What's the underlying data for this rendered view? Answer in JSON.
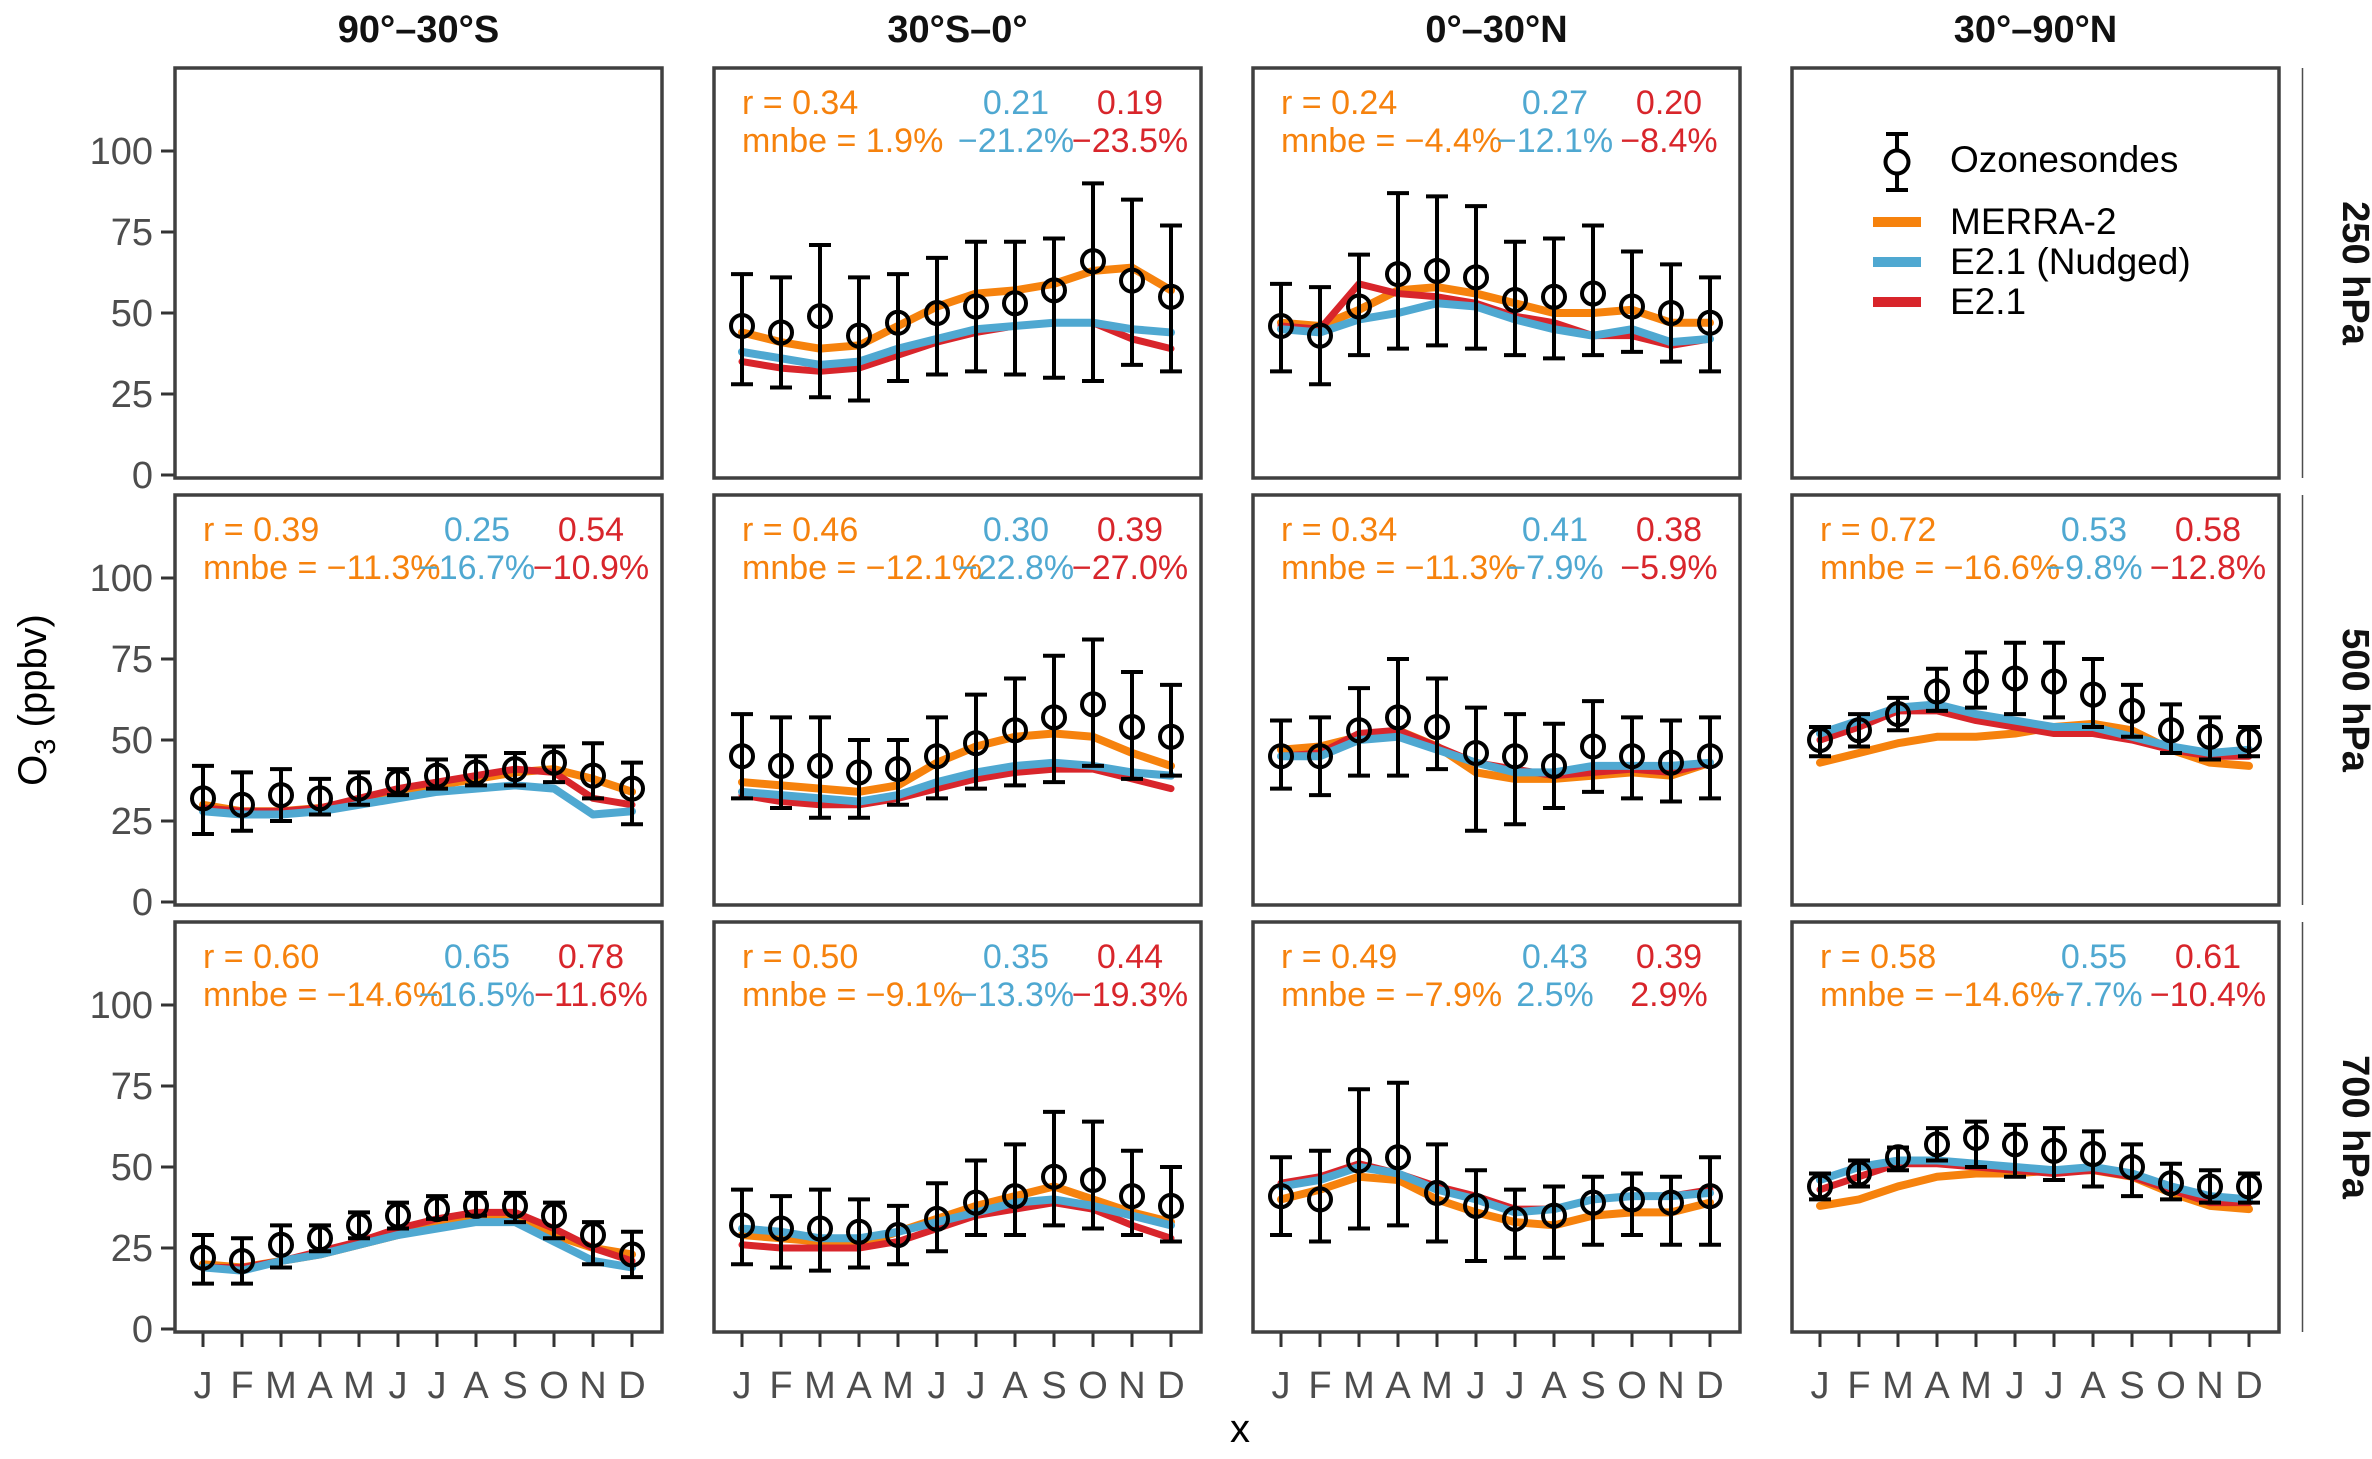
{
  "colors": {
    "merra2": "#F6820D",
    "nudged": "#4FA8D1",
    "e21": "#D8252B",
    "obs": "#000000",
    "axis_text": "#4D4D4D",
    "header_text": "#111111",
    "border": "#404040",
    "background": "#ffffff"
  },
  "legend": {
    "items": [
      {
        "label": "Ozonesondes",
        "type": "point",
        "color_key": "obs"
      },
      {
        "label": "MERRA-2",
        "type": "line",
        "color_key": "merra2"
      },
      {
        "label": "E2.1 (Nudged)",
        "type": "line",
        "color_key": "nudged"
      },
      {
        "label": "E2.1",
        "type": "line",
        "color_key": "e21"
      }
    ]
  },
  "chart_data": {
    "type": "line",
    "categories": [
      "J",
      "F",
      "M",
      "A",
      "M",
      "J",
      "J",
      "A",
      "S",
      "O",
      "N",
      "D"
    ],
    "ylim": [
      0,
      125
    ],
    "yticks": [
      0,
      25,
      50,
      75,
      100
    ],
    "ylabel_pre": "O",
    "ylabel_sub": "3",
    "ylabel_post": " (ppbv)",
    "xlabel": "x",
    "col_headers": [
      "90°–30°S",
      "30°S–0°",
      "0°–30°N",
      "30°–90°N"
    ],
    "row_headers": [
      "250 hPa",
      "500 hPa",
      "700 hPa"
    ],
    "stats_prefix_r": "r = ",
    "stats_prefix_mnbe": "mnbe = ",
    "series_names": [
      "Ozonesondes",
      "MERRA-2",
      "E2.1 (Nudged)",
      "E2.1"
    ],
    "legend_position": {
      "row": 0,
      "col": 3
    },
    "panels": [
      {
        "row": 0,
        "col": 0,
        "empty": true
      },
      {
        "row": 0,
        "col": 1,
        "stats": {
          "r": [
            "0.34",
            "0.21",
            "0.19"
          ],
          "mnbe": [
            "1.9%",
            "−21.2%",
            "−23.5%"
          ]
        },
        "obs": [
          46,
          44,
          49,
          43,
          47,
          50,
          52,
          53,
          57,
          66,
          60,
          55
        ],
        "err_lo": [
          28,
          27,
          24,
          23,
          29,
          31,
          32,
          31,
          30,
          29,
          34,
          32
        ],
        "err_hi": [
          62,
          61,
          71,
          61,
          62,
          67,
          72,
          72,
          73,
          90,
          85,
          77
        ],
        "merra2": [
          44,
          41,
          39,
          40,
          46,
          52,
          56,
          57,
          59,
          63,
          64,
          57
        ],
        "nudged": [
          38,
          36,
          34,
          35,
          39,
          42,
          45,
          46,
          47,
          47,
          45,
          44
        ],
        "e21": [
          35,
          33,
          32,
          33,
          37,
          41,
          44,
          46,
          47,
          47,
          42,
          39
        ]
      },
      {
        "row": 0,
        "col": 2,
        "stats": {
          "r": [
            "0.24",
            "0.27",
            "0.20"
          ],
          "mnbe": [
            "−4.4%",
            "−12.1%",
            "−8.4%"
          ]
        },
        "obs": [
          46,
          43,
          52,
          62,
          63,
          61,
          54,
          55,
          56,
          52,
          50,
          47
        ],
        "err_lo": [
          32,
          28,
          37,
          39,
          40,
          39,
          37,
          36,
          37,
          38,
          35,
          32
        ],
        "err_hi": [
          59,
          58,
          68,
          87,
          86,
          83,
          72,
          73,
          77,
          69,
          65,
          61
        ],
        "merra2": [
          47,
          46,
          51,
          57,
          58,
          56,
          53,
          50,
          50,
          51,
          47,
          47
        ],
        "nudged": [
          45,
          44,
          48,
          50,
          53,
          52,
          48,
          45,
          43,
          45,
          41,
          42
        ],
        "e21": [
          46,
          45,
          59,
          56,
          55,
          53,
          49,
          47,
          43,
          43,
          40,
          42
        ]
      },
      {
        "row": 0,
        "col": 3,
        "legend": true
      },
      {
        "row": 1,
        "col": 0,
        "stats": {
          "r": [
            "0.39",
            "0.25",
            "0.54"
          ],
          "mnbe": [
            "−11.3%",
            "−16.7%",
            "−10.9%"
          ]
        },
        "obs": [
          32,
          30,
          33,
          32,
          35,
          37,
          39,
          40,
          41,
          43,
          39,
          35
        ],
        "err_lo": [
          21,
          22,
          25,
          27,
          30,
          33,
          35,
          36,
          36,
          37,
          32,
          24
        ],
        "err_hi": [
          42,
          40,
          41,
          38,
          40,
          41,
          44,
          45,
          46,
          48,
          49,
          43
        ],
        "merra2": [
          30,
          28,
          28,
          29,
          31,
          34,
          36,
          38,
          40,
          41,
          38,
          34
        ],
        "nudged": [
          28,
          27,
          27,
          28,
          30,
          32,
          34,
          35,
          36,
          35,
          27,
          28
        ],
        "e21": [
          29,
          28,
          28,
          29,
          32,
          35,
          37,
          39,
          41,
          40,
          32,
          30
        ]
      },
      {
        "row": 1,
        "col": 1,
        "stats": {
          "r": [
            "0.46",
            "0.30",
            "0.39"
          ],
          "mnbe": [
            "−12.1%",
            "−22.8%",
            "−27.0%"
          ]
        },
        "obs": [
          45,
          42,
          42,
          40,
          41,
          45,
          49,
          53,
          57,
          61,
          54,
          51
        ],
        "err_lo": [
          32,
          29,
          26,
          26,
          30,
          32,
          35,
          36,
          37,
          42,
          38,
          39
        ],
        "err_hi": [
          58,
          57,
          57,
          50,
          50,
          57,
          64,
          69,
          76,
          81,
          71,
          67
        ],
        "merra2": [
          37,
          36,
          35,
          34,
          36,
          43,
          48,
          51,
          52,
          51,
          46,
          42
        ],
        "nudged": [
          34,
          33,
          32,
          31,
          33,
          37,
          40,
          42,
          43,
          42,
          40,
          39
        ],
        "e21": [
          33,
          31,
          30,
          30,
          32,
          35,
          38,
          40,
          41,
          41,
          38,
          35
        ]
      },
      {
        "row": 1,
        "col": 2,
        "stats": {
          "r": [
            "0.34",
            "0.41",
            "0.38"
          ],
          "mnbe": [
            "−11.3%",
            "−7.9%",
            "−5.9%"
          ]
        },
        "obs": [
          45,
          45,
          53,
          57,
          54,
          46,
          45,
          42,
          48,
          45,
          43,
          45
        ],
        "err_lo": [
          35,
          33,
          39,
          39,
          41,
          22,
          24,
          29,
          34,
          32,
          31,
          32
        ],
        "err_hi": [
          56,
          57,
          66,
          75,
          69,
          60,
          58,
          55,
          62,
          57,
          56,
          57
        ],
        "merra2": [
          47,
          48,
          51,
          53,
          48,
          40,
          38,
          38,
          39,
          40,
          39,
          43
        ],
        "nudged": [
          45,
          45,
          50,
          51,
          47,
          43,
          40,
          40,
          42,
          42,
          42,
          43
        ],
        "e21": [
          45,
          46,
          52,
          53,
          48,
          43,
          41,
          39,
          40,
          41,
          40,
          43
        ]
      },
      {
        "row": 1,
        "col": 3,
        "stats": {
          "r": [
            "0.72",
            "0.53",
            "0.58"
          ],
          "mnbe": [
            "−16.6%",
            "−9.8%",
            "−12.8%"
          ]
        },
        "obs": [
          50,
          53,
          58,
          65,
          68,
          69,
          68,
          64,
          59,
          53,
          51,
          50
        ],
        "err_lo": [
          45,
          48,
          53,
          59,
          60,
          58,
          57,
          54,
          51,
          46,
          44,
          45
        ],
        "err_hi": [
          54,
          58,
          63,
          72,
          77,
          80,
          80,
          75,
          67,
          61,
          57,
          54
        ],
        "merra2": [
          43,
          46,
          49,
          51,
          51,
          52,
          54,
          55,
          53,
          47,
          43,
          42
        ],
        "nudged": [
          52,
          56,
          60,
          61,
          58,
          56,
          54,
          54,
          51,
          48,
          46,
          47
        ],
        "e21": [
          50,
          54,
          59,
          59,
          56,
          54,
          52,
          52,
          50,
          47,
          45,
          45
        ]
      },
      {
        "row": 2,
        "col": 0,
        "stats": {
          "r": [
            "0.60",
            "0.65",
            "0.78"
          ],
          "mnbe": [
            "−14.6%",
            "−16.5%",
            "−11.6%"
          ]
        },
        "obs": [
          22,
          21,
          26,
          28,
          32,
          35,
          37,
          38,
          38,
          35,
          29,
          23
        ],
        "err_lo": [
          14,
          14,
          19,
          24,
          28,
          31,
          34,
          35,
          33,
          28,
          20,
          16
        ],
        "err_hi": [
          29,
          28,
          32,
          32,
          36,
          39,
          41,
          42,
          42,
          39,
          33,
          30
        ],
        "merra2": [
          20,
          19,
          21,
          23,
          26,
          29,
          32,
          34,
          34,
          29,
          25,
          23
        ],
        "nudged": [
          19,
          18,
          21,
          23,
          26,
          29,
          31,
          33,
          33,
          27,
          21,
          19
        ],
        "e21": [
          19,
          19,
          21,
          24,
          27,
          31,
          34,
          36,
          36,
          31,
          25,
          21
        ]
      },
      {
        "row": 2,
        "col": 1,
        "stats": {
          "r": [
            "0.50",
            "0.35",
            "0.44"
          ],
          "mnbe": [
            "−9.1%",
            "−13.3%",
            "−19.3%"
          ]
        },
        "obs": [
          32,
          31,
          31,
          30,
          29,
          34,
          39,
          41,
          47,
          46,
          41,
          38
        ],
        "err_lo": [
          20,
          19,
          18,
          19,
          20,
          24,
          29,
          29,
          32,
          31,
          29,
          27
        ],
        "err_hi": [
          43,
          41,
          43,
          40,
          38,
          45,
          52,
          57,
          67,
          64,
          55,
          50
        ],
        "merra2": [
          29,
          28,
          27,
          26,
          30,
          34,
          38,
          41,
          44,
          40,
          36,
          33
        ],
        "nudged": [
          31,
          30,
          28,
          28,
          30,
          33,
          36,
          39,
          40,
          38,
          35,
          32
        ],
        "e21": [
          26,
          25,
          25,
          25,
          27,
          31,
          35,
          37,
          39,
          37,
          32,
          28
        ]
      },
      {
        "row": 2,
        "col": 2,
        "stats": {
          "r": [
            "0.49",
            "0.43",
            "0.39"
          ],
          "mnbe": [
            "−7.9%",
            "2.5%",
            "2.9%"
          ]
        },
        "obs": [
          41,
          40,
          52,
          53,
          42,
          38,
          34,
          35,
          39,
          40,
          39,
          41
        ],
        "err_lo": [
          29,
          27,
          31,
          32,
          27,
          21,
          22,
          22,
          26,
          29,
          26,
          26
        ],
        "err_hi": [
          53,
          55,
          74,
          76,
          57,
          49,
          43,
          44,
          47,
          48,
          47,
          53
        ],
        "merra2": [
          40,
          43,
          47,
          46,
          40,
          36,
          33,
          32,
          35,
          36,
          36,
          39
        ],
        "nudged": [
          44,
          46,
          50,
          48,
          43,
          40,
          36,
          37,
          40,
          41,
          41,
          42
        ],
        "e21": [
          45,
          47,
          51,
          48,
          44,
          41,
          37,
          37,
          40,
          41,
          41,
          43
        ]
      },
      {
        "row": 2,
        "col": 3,
        "stats": {
          "r": [
            "0.58",
            "0.55",
            "0.61"
          ],
          "mnbe": [
            "−14.6%",
            "−7.7%",
            "−10.4%"
          ]
        },
        "obs": [
          44,
          48,
          53,
          57,
          59,
          57,
          55,
          54,
          50,
          45,
          44,
          44
        ],
        "err_lo": [
          40,
          44,
          49,
          52,
          50,
          47,
          46,
          44,
          41,
          40,
          39,
          39
        ],
        "err_hi": [
          48,
          52,
          56,
          62,
          64,
          63,
          62,
          61,
          57,
          51,
          49,
          48
        ],
        "merra2": [
          38,
          40,
          44,
          47,
          48,
          48,
          49,
          49,
          47,
          42,
          38,
          37
        ],
        "nudged": [
          46,
          50,
          52,
          52,
          51,
          50,
          49,
          50,
          48,
          44,
          41,
          40
        ],
        "e21": [
          43,
          47,
          51,
          51,
          50,
          49,
          48,
          49,
          47,
          43,
          39,
          39
        ]
      }
    ]
  }
}
